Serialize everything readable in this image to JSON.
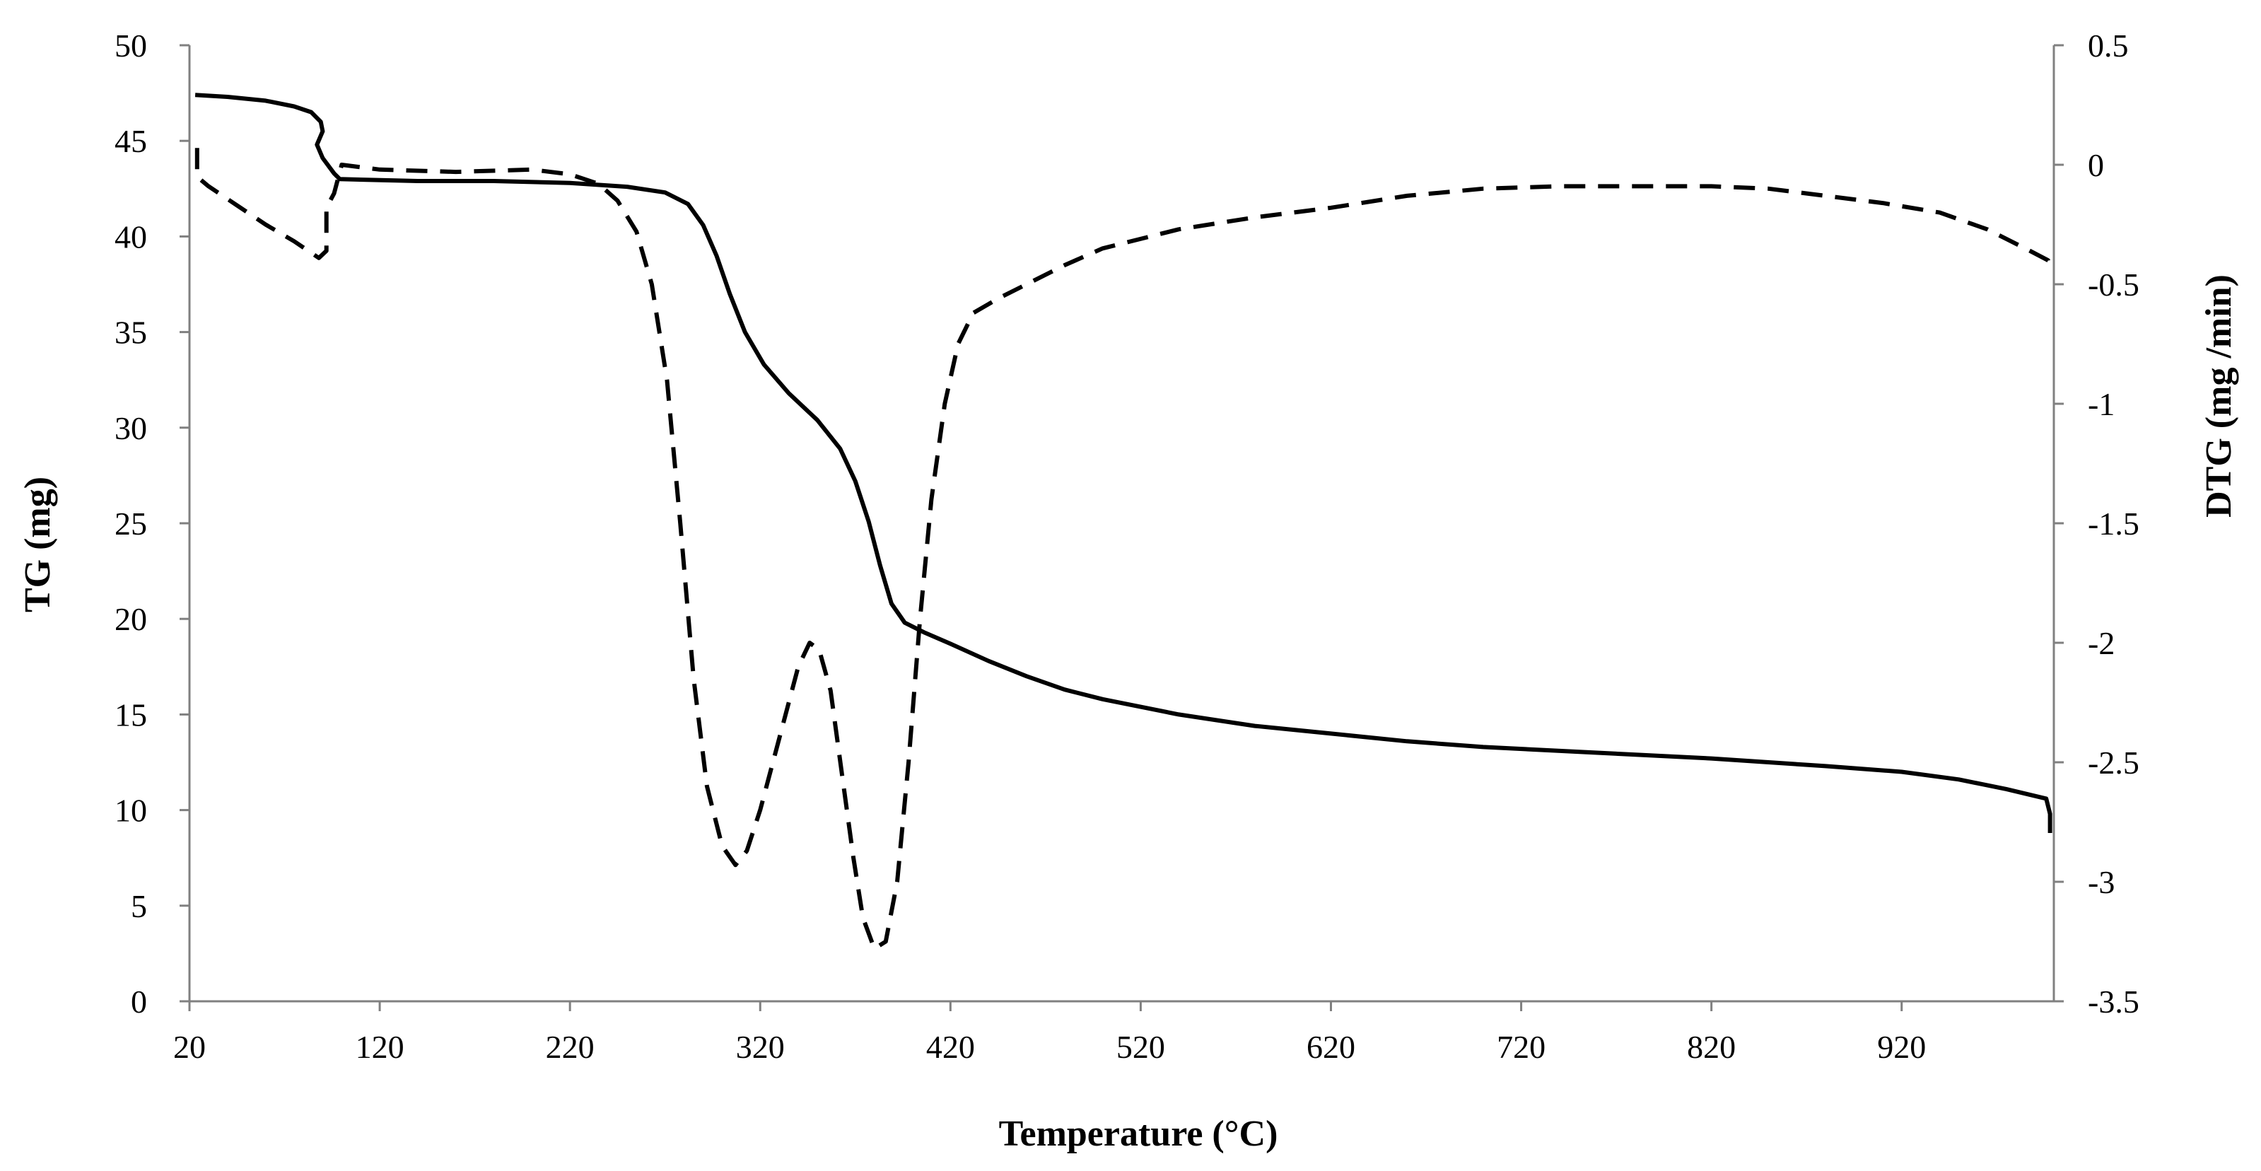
{
  "chart_data": {
    "type": "line",
    "title": "",
    "xlabel": "Temperature (°C)",
    "ylabel_left": "TG (mg)",
    "ylabel_right": "DTG (mg /min)",
    "xlim": [
      20,
      1000
    ],
    "ylim_left": [
      0,
      50
    ],
    "ylim_right": [
      -3.5,
      0.5
    ],
    "x_ticks": [
      "20",
      "120",
      "220",
      "320",
      "420",
      "520",
      "620",
      "720",
      "820",
      "920"
    ],
    "y_left_ticks": [
      "0",
      "5",
      "10",
      "15",
      "20",
      "25",
      "30",
      "35",
      "40",
      "45",
      "50"
    ],
    "y_right_ticks": [
      "-3.5",
      "-3",
      "-2.5",
      "-2",
      "-1.5",
      "-1",
      "-0.5",
      "0",
      "0.5"
    ],
    "grid": false,
    "legend": "none",
    "series": [
      {
        "name": "TG",
        "axis": "left",
        "style": "solid",
        "color": "#000000",
        "points": [
          [
            23,
            47.4
          ],
          [
            40,
            47.3
          ],
          [
            60,
            47.1
          ],
          [
            75,
            46.8
          ],
          [
            84,
            46.5
          ],
          [
            89,
            46.0
          ],
          [
            90,
            45.5
          ],
          [
            87,
            44.8
          ],
          [
            90,
            44.1
          ],
          [
            96,
            43.3
          ],
          [
            99,
            43.0
          ],
          [
            140,
            42.9
          ],
          [
            180,
            42.9
          ],
          [
            220,
            42.8
          ],
          [
            250,
            42.6
          ],
          [
            270,
            42.3
          ],
          [
            282,
            41.7
          ],
          [
            290,
            40.6
          ],
          [
            297,
            39.0
          ],
          [
            304,
            37.0
          ],
          [
            312,
            35.0
          ],
          [
            322,
            33.3
          ],
          [
            335,
            31.8
          ],
          [
            350,
            30.4
          ],
          [
            362,
            28.9
          ],
          [
            370,
            27.2
          ],
          [
            377,
            25.1
          ],
          [
            383,
            22.8
          ],
          [
            389,
            20.8
          ],
          [
            396,
            19.8
          ],
          [
            406,
            19.3
          ],
          [
            420,
            18.7
          ],
          [
            440,
            17.8
          ],
          [
            460,
            17.0
          ],
          [
            480,
            16.3
          ],
          [
            500,
            15.8
          ],
          [
            540,
            15.0
          ],
          [
            580,
            14.4
          ],
          [
            620,
            14.0
          ],
          [
            660,
            13.6
          ],
          [
            700,
            13.3
          ],
          [
            760,
            13.0
          ],
          [
            820,
            12.7
          ],
          [
            880,
            12.3
          ],
          [
            920,
            12.0
          ],
          [
            950,
            11.6
          ],
          [
            975,
            11.1
          ],
          [
            996,
            10.6
          ],
          [
            998,
            9.8
          ],
          [
            998,
            8.8
          ]
        ]
      },
      {
        "name": "DTG",
        "axis": "right",
        "style": "dashed",
        "color": "#000000",
        "points": [
          [
            24,
            0.07
          ],
          [
            24,
            -0.05
          ],
          [
            30,
            -0.09
          ],
          [
            45,
            -0.17
          ],
          [
            60,
            -0.25
          ],
          [
            75,
            -0.32
          ],
          [
            88,
            -0.39
          ],
          [
            92,
            -0.36
          ],
          [
            92,
            -0.18
          ],
          [
            96,
            -0.12
          ],
          [
            100,
            0.0
          ],
          [
            120,
            -0.02
          ],
          [
            160,
            -0.03
          ],
          [
            200,
            -0.02
          ],
          [
            220,
            -0.04
          ],
          [
            235,
            -0.08
          ],
          [
            245,
            -0.15
          ],
          [
            255,
            -0.28
          ],
          [
            263,
            -0.5
          ],
          [
            271,
            -0.9
          ],
          [
            278,
            -1.5
          ],
          [
            285,
            -2.15
          ],
          [
            292,
            -2.6
          ],
          [
            300,
            -2.85
          ],
          [
            307,
            -2.93
          ],
          [
            313,
            -2.87
          ],
          [
            320,
            -2.7
          ],
          [
            330,
            -2.4
          ],
          [
            340,
            -2.1
          ],
          [
            346,
            -2.0
          ],
          [
            351,
            -2.03
          ],
          [
            357,
            -2.2
          ],
          [
            363,
            -2.55
          ],
          [
            369,
            -2.9
          ],
          [
            374,
            -3.15
          ],
          [
            380,
            -3.28
          ],
          [
            386,
            -3.25
          ],
          [
            392,
            -3.0
          ],
          [
            398,
            -2.5
          ],
          [
            404,
            -1.9
          ],
          [
            410,
            -1.4
          ],
          [
            417,
            -1.0
          ],
          [
            424,
            -0.75
          ],
          [
            432,
            -0.62
          ],
          [
            445,
            -0.56
          ],
          [
            460,
            -0.5
          ],
          [
            480,
            -0.42
          ],
          [
            500,
            -0.35
          ],
          [
            540,
            -0.27
          ],
          [
            580,
            -0.22
          ],
          [
            620,
            -0.18
          ],
          [
            660,
            -0.13
          ],
          [
            700,
            -0.1
          ],
          [
            740,
            -0.09
          ],
          [
            780,
            -0.09
          ],
          [
            820,
            -0.09
          ],
          [
            850,
            -0.1
          ],
          [
            880,
            -0.13
          ],
          [
            910,
            -0.16
          ],
          [
            940,
            -0.2
          ],
          [
            965,
            -0.27
          ],
          [
            985,
            -0.35
          ],
          [
            997,
            -0.4
          ],
          [
            998,
            -0.45
          ]
        ]
      }
    ]
  }
}
